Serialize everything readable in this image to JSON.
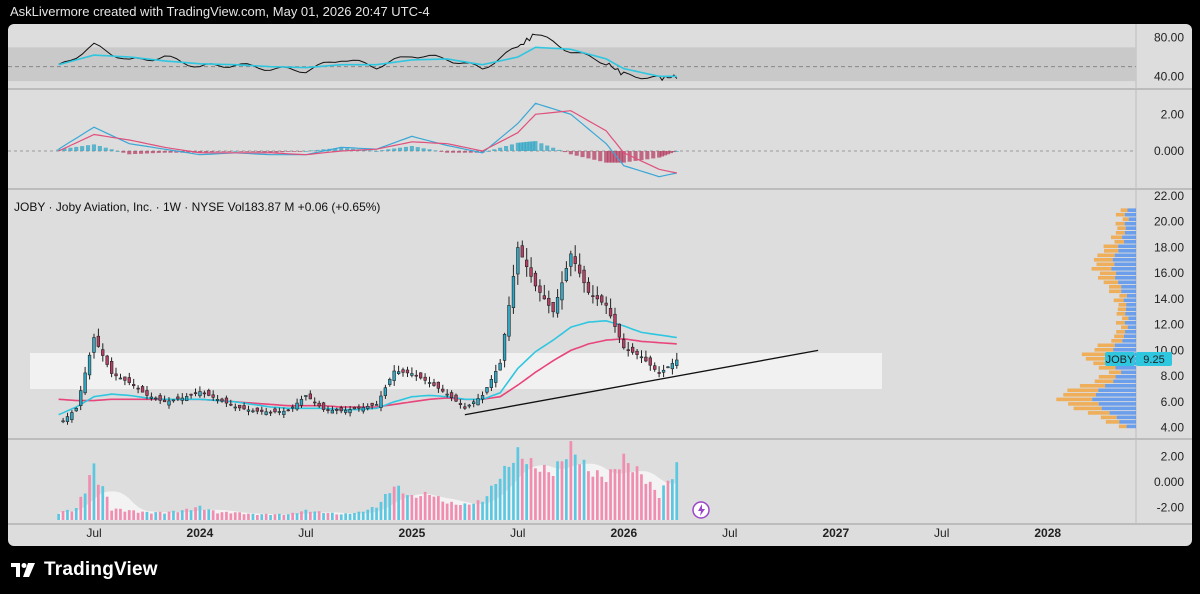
{
  "header": {
    "credit": "AskLivermore created with TradingView.com, May 01, 2026 20:47 UTC-4"
  },
  "footer": {
    "brand": "TradingView"
  },
  "colors": {
    "up": "#2fa6c4",
    "down": "#b54064",
    "ema_fast": "#2fc6e0",
    "ema_slow": "#e8457a",
    "zone": "#f4f4f4",
    "vp_up": "#4f8fef",
    "vp_down": "#f2a33a"
  },
  "chart_data": [
    {
      "type": "line",
      "panel": "rsi",
      "yticks": [
        "80.00",
        "40.00"
      ],
      "ylim": [
        30,
        90
      ],
      "band": [
        35,
        70
      ],
      "midline": 50,
      "x": [
        "2023-05",
        "2023-07",
        "2023-09",
        "2023-11",
        "2024-01",
        "2024-03",
        "2024-05",
        "2024-07",
        "2024-09",
        "2024-11",
        "2025-01",
        "2025-03",
        "2025-05",
        "2025-07",
        "2025-08",
        "2025-10",
        "2025-12",
        "2026-01",
        "2026-03",
        "2026-04"
      ],
      "series": [
        {
          "values": [
            50,
            72,
            56,
            60,
            50,
            52,
            48,
            46,
            58,
            50,
            62,
            58,
            48,
            70,
            84,
            66,
            54,
            42,
            38,
            40
          ]
        },
        {
          "values": [
            52,
            62,
            60,
            56,
            53,
            52,
            50,
            49,
            52,
            52,
            57,
            58,
            52,
            60,
            70,
            68,
            58,
            48,
            40,
            40
          ]
        }
      ]
    },
    {
      "type": "bar",
      "panel": "macd",
      "yticks": [
        "2.00",
        "0.000"
      ],
      "ylim": [
        -1.8,
        3.0
      ],
      "x": [
        "2023-05",
        "2023-07",
        "2023-09",
        "2023-11",
        "2024-01",
        "2024-03",
        "2024-05",
        "2024-07",
        "2024-09",
        "2024-11",
        "2025-01",
        "2025-03",
        "2025-05",
        "2025-07",
        "2025-08",
        "2025-10",
        "2025-12",
        "2026-01",
        "2026-03",
        "2026-04"
      ],
      "series": [
        {
          "values": [
            0.1,
            1.3,
            0.4,
            0.1,
            -0.2,
            -0.1,
            -0.2,
            -0.2,
            0.2,
            0.1,
            0.8,
            0.3,
            -0.1,
            1.5,
            2.6,
            2.0,
            0.4,
            -0.8,
            -1.4,
            -1.2
          ]
        },
        {
          "values": [
            0.0,
            0.9,
            0.6,
            0.2,
            -0.1,
            -0.1,
            -0.1,
            -0.2,
            0.0,
            0.1,
            0.5,
            0.4,
            0.0,
            1.0,
            2.0,
            2.2,
            1.1,
            -0.1,
            -1.0,
            -1.2
          ]
        }
      ]
    },
    {
      "type": "line",
      "panel": "price",
      "legend": "JOBY · Joby Aviation, Inc. · 1W · NYSE  Vol183.87 M  +0.06 (+0.65%)",
      "yticks": [
        "22.00",
        "20.00",
        "18.00",
        "16.00",
        "14.00",
        "12.00",
        "10.00",
        "8.00",
        "6.00",
        "4.00"
      ],
      "ylim": [
        3.5,
        22
      ],
      "last_price": {
        "ticker": "JOBY",
        "value": "9.25"
      },
      "x": [
        "2023-05",
        "2023-06",
        "2023-07",
        "2023-08",
        "2023-09",
        "2023-10",
        "2023-11",
        "2023-12",
        "2024-01",
        "2024-02",
        "2024-03",
        "2024-04",
        "2024-05",
        "2024-06",
        "2024-07",
        "2024-08",
        "2024-09",
        "2024-10",
        "2024-11",
        "2024-12",
        "2025-01",
        "2025-02",
        "2025-03",
        "2025-04",
        "2025-05",
        "2025-06",
        "2025-07",
        "2025-08",
        "2025-09",
        "2025-10",
        "2025-11",
        "2025-12",
        "2026-01",
        "2026-02",
        "2026-03",
        "2026-04"
      ],
      "series": [
        {
          "name": "JOBY",
          "values": [
            4.2,
            5.5,
            11.0,
            8.2,
            7.5,
            6.5,
            6.0,
            6.3,
            6.8,
            6.2,
            5.6,
            5.3,
            5.2,
            5.3,
            6.5,
            5.4,
            5.3,
            5.5,
            5.8,
            8.4,
            8.2,
            7.5,
            6.6,
            5.5,
            6.5,
            9.0,
            18.0,
            15.0,
            13.0,
            17.5,
            14.5,
            13.5,
            10.2,
            9.5,
            8.2,
            9.25
          ]
        },
        {
          "values": [
            5.0,
            5.6,
            6.4,
            6.6,
            6.5,
            6.3,
            6.2,
            6.2,
            6.2,
            6.1,
            6.0,
            5.8,
            5.6,
            5.5,
            5.5,
            5.5,
            5.4,
            5.4,
            5.5,
            6.0,
            6.4,
            6.5,
            6.4,
            6.2,
            6.2,
            6.7,
            8.6,
            9.9,
            10.8,
            11.8,
            12.2,
            12.3,
            11.9,
            11.4,
            11.2,
            11.0
          ]
        },
        {
          "values": [
            6.2,
            6.1,
            6.1,
            6.2,
            6.2,
            6.2,
            6.2,
            6.2,
            6.2,
            6.1,
            6.0,
            5.9,
            5.8,
            5.7,
            5.7,
            5.7,
            5.6,
            5.6,
            5.6,
            5.8,
            6.0,
            6.2,
            6.3,
            6.2,
            6.2,
            6.4,
            7.3,
            8.3,
            9.2,
            10.0,
            10.5,
            10.8,
            10.9,
            10.7,
            10.6,
            10.5
          ]
        }
      ],
      "support_zone": [
        7.0,
        9.8
      ],
      "trendline": [
        [
          "2025-04",
          5.0
        ],
        [
          "2026-12",
          10.0
        ]
      ]
    },
    {
      "type": "bar",
      "panel": "volume",
      "yticks": [
        "2.00",
        "0.000",
        "-2.00"
      ],
      "x_axis": [
        "Jul",
        "2024",
        "Jul",
        "2025",
        "Jul",
        "2026",
        "Jul",
        "2027",
        "Jul",
        "2028"
      ],
      "values": [
        0.4,
        0.6,
        2.8,
        0.6,
        0.5,
        0.4,
        0.4,
        0.5,
        0.7,
        0.4,
        0.4,
        0.3,
        0.3,
        0.3,
        0.5,
        0.4,
        0.3,
        0.4,
        0.7,
        1.8,
        1.2,
        1.4,
        0.9,
        0.8,
        1.0,
        2.3,
        3.5,
        2.8,
        2.5,
        3.8,
        2.6,
        2.2,
        3.2,
        2.4,
        1.3,
        2.8
      ],
      "down": [
        false,
        true,
        false,
        true,
        true,
        true,
        false,
        true,
        false,
        true,
        true,
        true,
        false,
        true,
        false,
        true,
        false,
        false,
        false,
        false,
        true,
        true,
        true,
        true,
        false,
        false,
        false,
        true,
        true,
        false,
        true,
        true,
        true,
        true,
        true,
        false
      ]
    }
  ]
}
